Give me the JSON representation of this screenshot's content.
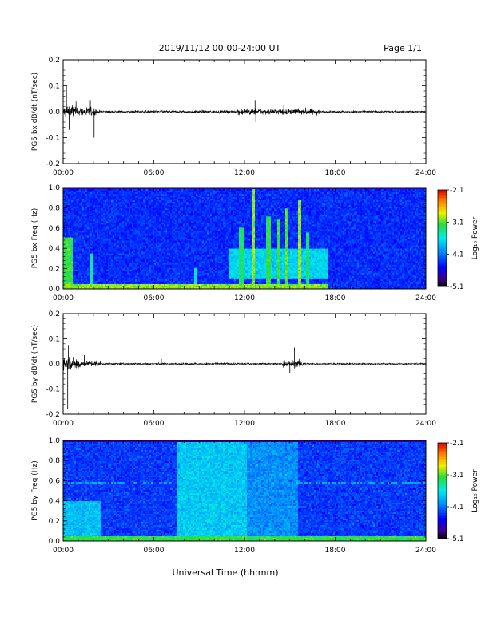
{
  "header": {
    "date_range": "2019/11/12  00:00-24:00 UT",
    "page": "Page 1/1"
  },
  "chart_data": [
    {
      "type": "line",
      "panel": "bx-waveform",
      "ylabel": "PG5 bx dB/dt (nT/sec)",
      "ylim": [
        -0.2,
        0.2
      ],
      "yticks": [
        "0.2",
        "0.1",
        "0.0",
        "-0.1",
        "-0.2"
      ],
      "xlim_hours": [
        0,
        24
      ],
      "xticks": [
        "00:00",
        "06:00",
        "12:00",
        "18:00",
        "24:00"
      ],
      "activity": [
        {
          "t0": 0.0,
          "t1": 1.0,
          "amp": 0.045
        },
        {
          "t0": 1.0,
          "t1": 2.3,
          "amp": 0.028
        },
        {
          "t0": 2.3,
          "t1": 11.5,
          "amp": 0.008
        },
        {
          "t0": 11.5,
          "t1": 13.0,
          "amp": 0.02
        },
        {
          "t0": 13.0,
          "t1": 17.0,
          "amp": 0.018
        },
        {
          "t0": 17.0,
          "t1": 24.0,
          "amp": 0.006
        }
      ],
      "spikes": [
        {
          "t": 0.22,
          "value": 0.1
        },
        {
          "t": 0.4,
          "value": -0.07
        },
        {
          "t": 2.05,
          "value": -0.1
        },
        {
          "t": 1.8,
          "value": 0.045
        },
        {
          "t": 12.7,
          "value": 0.045
        },
        {
          "t": 12.75,
          "value": -0.04
        },
        {
          "t": 14.6,
          "value": 0.028
        }
      ]
    },
    {
      "type": "heatmap",
      "panel": "bx-spectrogram",
      "ylabel": "PG5 bx Freq (Hz)",
      "ylim": [
        0.0,
        1.0
      ],
      "yticks": [
        "1.0",
        "0.8",
        "0.6",
        "0.4",
        "0.2",
        "0.0"
      ],
      "xlim_hours": [
        0,
        24
      ],
      "xticks": [
        "00:00",
        "06:00",
        "12:00",
        "18:00",
        "24:00"
      ],
      "colorbar": {
        "label": "Log₁₀ Power",
        "min": -5.1,
        "max": -2.1,
        "ticks": [
          "-2.1",
          "-3.1",
          "-4.1",
          "-5.1"
        ]
      },
      "base_log_power": -4.35,
      "features": [
        {
          "kind": "low-freq-band",
          "t0": 0.0,
          "t1": 17.5,
          "f1": 0.05,
          "log_power": -3.0
        },
        {
          "kind": "burst",
          "t0": 0.0,
          "t1": 0.6,
          "f0": 0.0,
          "f1": 0.5,
          "log_power": -3.2
        },
        {
          "kind": "burst",
          "t0": 11.0,
          "t1": 17.5,
          "f0": 0.1,
          "f1": 0.4,
          "log_power": -3.7
        },
        {
          "kind": "emission",
          "t": 11.8,
          "f1": 0.6,
          "log_power": -3.3
        },
        {
          "kind": "emission",
          "t": 12.55,
          "f1": 0.98,
          "log_power": -3.0
        },
        {
          "kind": "emission",
          "t": 13.6,
          "f1": 0.72,
          "log_power": -3.2
        },
        {
          "kind": "emission",
          "t": 14.3,
          "f1": 0.68,
          "log_power": -3.2
        },
        {
          "kind": "emission",
          "t": 14.8,
          "f1": 0.8,
          "log_power": -3.1
        },
        {
          "kind": "emission",
          "t": 15.65,
          "f1": 0.88,
          "log_power": -3.0
        },
        {
          "kind": "emission",
          "t": 16.2,
          "f1": 0.55,
          "log_power": -3.3
        },
        {
          "kind": "emission",
          "t": 1.9,
          "f1": 0.35,
          "log_power": -3.4
        },
        {
          "kind": "emission",
          "t": 8.8,
          "f1": 0.2,
          "log_power": -3.6
        }
      ]
    },
    {
      "type": "line",
      "panel": "by-waveform",
      "ylabel": "PG5 by dB/dt (nT/sec)",
      "ylim": [
        -0.2,
        0.2
      ],
      "yticks": [
        "0.2",
        "0.1",
        "0.0",
        "-0.1",
        "-0.2"
      ],
      "xlim_hours": [
        0,
        24
      ],
      "xticks": [
        "00:00",
        "06:00",
        "12:00",
        "18:00",
        "24:00"
      ],
      "activity": [
        {
          "t0": 0.0,
          "t1": 1.2,
          "amp": 0.04
        },
        {
          "t0": 1.2,
          "t1": 2.5,
          "amp": 0.02
        },
        {
          "t0": 2.5,
          "t1": 14.5,
          "amp": 0.006
        },
        {
          "t0": 14.5,
          "t1": 16.0,
          "amp": 0.022
        },
        {
          "t0": 16.0,
          "t1": 24.0,
          "amp": 0.005
        }
      ],
      "spikes": [
        {
          "t": 0.3,
          "value": -0.18
        },
        {
          "t": 0.35,
          "value": 0.075
        },
        {
          "t": 1.4,
          "value": 0.035
        },
        {
          "t": 15.3,
          "value": 0.065
        },
        {
          "t": 15.0,
          "value": -0.035
        },
        {
          "t": 6.5,
          "value": 0.02
        }
      ]
    },
    {
      "type": "heatmap",
      "panel": "by-spectrogram",
      "ylabel": "PG5 by Freq (Hz)",
      "ylim": [
        0.0,
        1.0
      ],
      "yticks": [
        "1.0",
        "0.8",
        "0.6",
        "0.4",
        "0.2",
        "0.0"
      ],
      "xlim_hours": [
        0,
        24
      ],
      "xticks": [
        "00:00",
        "06:00",
        "12:00",
        "18:00",
        "24:00"
      ],
      "xlabel": "Universal Time (hh:mm)",
      "colorbar": {
        "label": "Log₁₀ Power",
        "min": -5.1,
        "max": -2.1,
        "ticks": [
          "-2.1",
          "-3.1",
          "-4.1",
          "-5.1"
        ]
      },
      "base_log_power": -4.3,
      "features": [
        {
          "kind": "low-freq-band",
          "t0": 0.0,
          "t1": 24.0,
          "f1": 0.05,
          "log_power": -3.2
        },
        {
          "kind": "burst",
          "t0": 7.5,
          "t1": 12.2,
          "f0": 0.0,
          "f1": 1.0,
          "log_power": -3.75
        },
        {
          "kind": "burst",
          "t0": 12.2,
          "t1": 15.5,
          "f0": 0.0,
          "f1": 1.0,
          "log_power": -4.0
        },
        {
          "kind": "burst",
          "t0": 0.0,
          "t1": 2.5,
          "f0": 0.0,
          "f1": 0.4,
          "log_power": -3.8
        },
        {
          "kind": "line",
          "t0": 0.0,
          "t1": 24.0,
          "f": 0.58,
          "log_power": -3.9
        }
      ]
    }
  ]
}
